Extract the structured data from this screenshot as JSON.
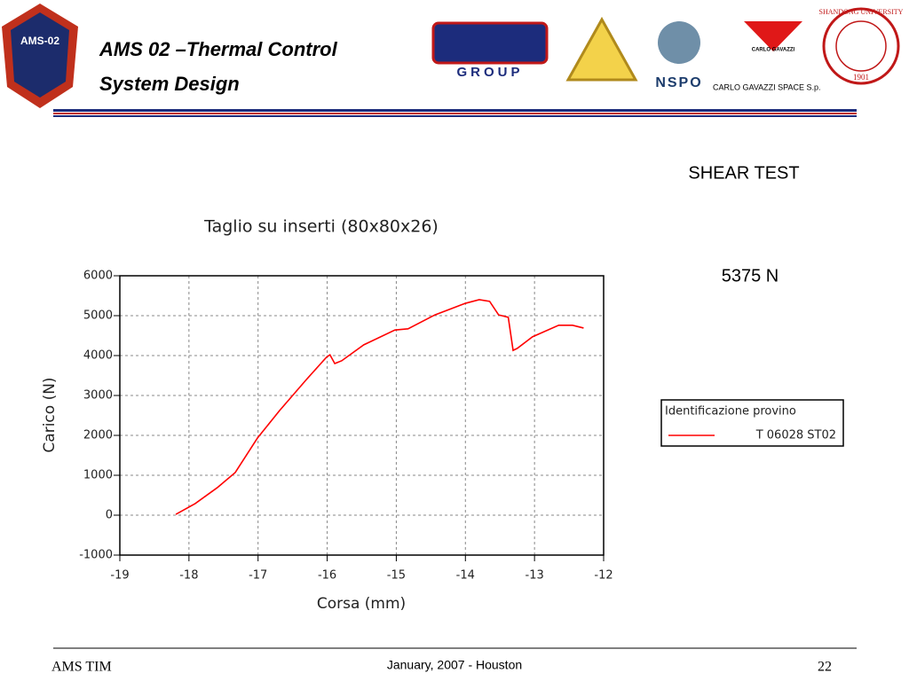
{
  "slide": {
    "title_lines": [
      "AMS 02  –Thermal Control",
      "System Design"
    ],
    "logos": [
      "AMS-02",
      "GROUP",
      "NSPO",
      "CARLO GAVAZZI",
      "CARLO GAVAZZI SPACE S.p.",
      "SHANDONG UNIVERSITY",
      "1901"
    ],
    "heading": "SHEAR TEST",
    "result": "5375 N",
    "footer_left": "AMS TIM",
    "footer_center": "January, 2007 - Houston",
    "page_number": "22"
  },
  "chart_data": {
    "type": "line",
    "title": "Taglio su inserti (80x80x26)",
    "x_label": "Corsa (mm)",
    "y_label": "Carico (N)",
    "x": [
      -18.19,
      -17.91,
      -17.59,
      -17.33,
      -17.01,
      -16.69,
      -16.3,
      -16.01,
      -15.96,
      -15.89,
      -15.79,
      -15.47,
      -15.02,
      -14.83,
      -14.44,
      -14.0,
      -13.8,
      -13.65,
      -13.52,
      -13.38,
      -13.31,
      -13.25,
      -13.03,
      -12.65,
      -12.45,
      -12.29
    ],
    "series": [
      {
        "name": "T 06028 ST02",
        "color": "#ff0000",
        "values": [
          20,
          290,
          690,
          1070,
          1930,
          2620,
          3400,
          3960,
          4020,
          3800,
          3870,
          4270,
          4640,
          4670,
          5020,
          5310,
          5400,
          5360,
          5020,
          4960,
          4130,
          4180,
          4470,
          4760,
          4760,
          4690
        ]
      }
    ],
    "legend_title": "Identificazione provino",
    "legend": "right",
    "xlim": [
      -19,
      -12
    ],
    "xticks": [
      -19,
      -18,
      -17,
      -16,
      -15,
      -14,
      -13,
      -12
    ],
    "ylim": [
      -1000,
      6000
    ],
    "yticks": [
      -1000,
      0,
      1000,
      2000,
      3000,
      4000,
      5000,
      6000
    ],
    "grid": true
  }
}
